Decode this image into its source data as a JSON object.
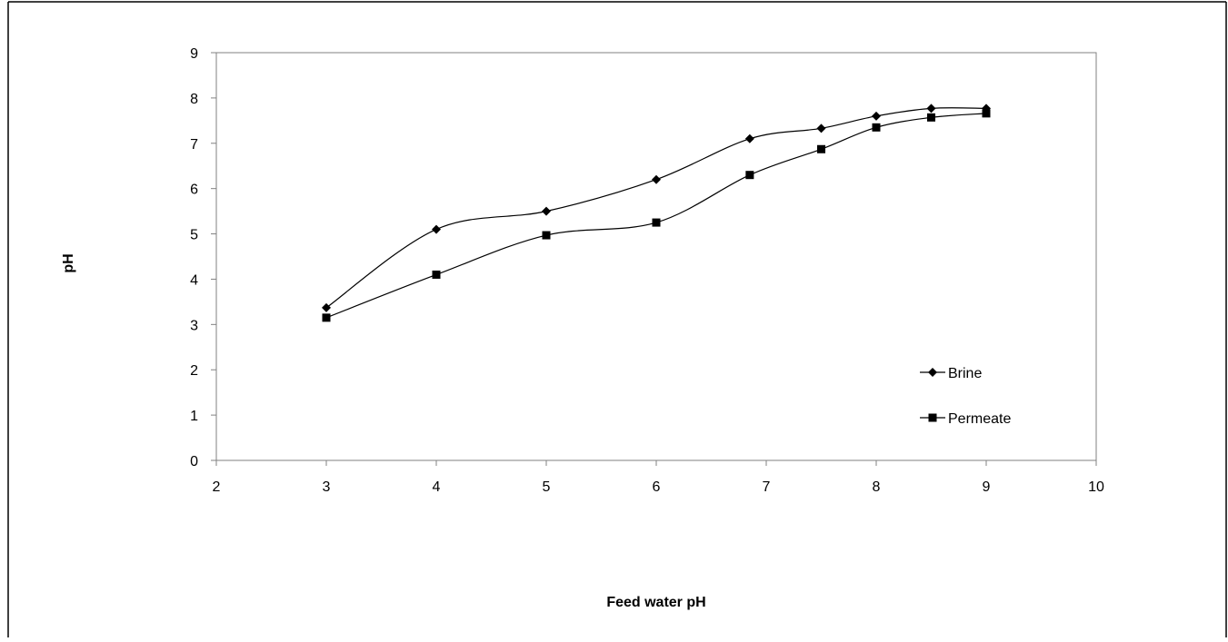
{
  "chart_data": {
    "type": "line",
    "title": "",
    "xlabel": "Feed water pH",
    "ylabel": "pH",
    "xlim": [
      2,
      10
    ],
    "ylim": [
      0,
      9
    ],
    "x_ticks": [
      "2",
      "3",
      "4",
      "5",
      "6",
      "7",
      "8",
      "9",
      "10"
    ],
    "y_ticks": [
      "0",
      "1",
      "2",
      "3",
      "4",
      "5",
      "6",
      "7",
      "8",
      "9"
    ],
    "grid": false,
    "legend_position": "bottom-right",
    "series": [
      {
        "name": "Brine",
        "marker": "diamond",
        "color": "#000000",
        "points": [
          [
            3,
            3.37
          ],
          [
            4,
            5.1
          ],
          [
            5,
            5.5
          ],
          [
            6,
            6.2
          ],
          [
            6.85,
            7.1
          ],
          [
            7.5,
            7.33
          ],
          [
            8,
            7.6
          ],
          [
            8.5,
            7.77
          ],
          [
            9,
            7.77
          ]
        ]
      },
      {
        "name": "Permeate",
        "marker": "square",
        "color": "#000000",
        "points": [
          [
            3,
            3.15
          ],
          [
            4,
            4.1
          ],
          [
            5,
            4.97
          ],
          [
            6,
            5.25
          ],
          [
            6.85,
            6.3
          ],
          [
            7.5,
            6.87
          ],
          [
            8,
            7.35
          ],
          [
            8.5,
            7.57
          ],
          [
            9,
            7.66
          ]
        ]
      }
    ]
  }
}
